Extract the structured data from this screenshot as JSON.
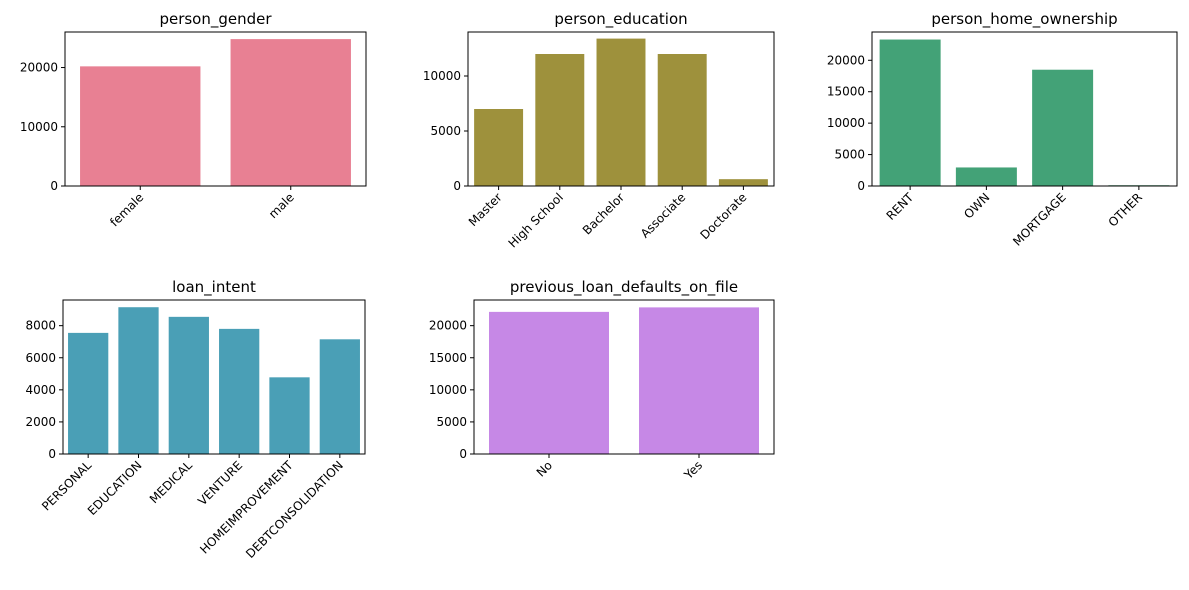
{
  "chart_data": [
    {
      "type": "bar",
      "title": "person_gender",
      "categories": [
        "female",
        "male"
      ],
      "values": [
        20200,
        24800
      ],
      "color": "#e88093",
      "ylim": [
        0,
        26000
      ],
      "yticks": [
        0,
        10000,
        20000
      ],
      "xlabel": "",
      "ylabel": ""
    },
    {
      "type": "bar",
      "title": "person_education",
      "categories": [
        "Master",
        "High School",
        "Bachelor",
        "Associate",
        "Doctorate"
      ],
      "values": [
        7000,
        12000,
        13400,
        12000,
        620
      ],
      "color": "#9e913c",
      "ylim": [
        0,
        14000
      ],
      "yticks": [
        0,
        5000,
        10000
      ],
      "xlabel": "",
      "ylabel": ""
    },
    {
      "type": "bar",
      "title": "person_home_ownership",
      "categories": [
        "RENT",
        "OWN",
        "MORTGAGE",
        "OTHER"
      ],
      "values": [
        23300,
        2950,
        18500,
        120
      ],
      "color": "#43a277",
      "ylim": [
        0,
        24500
      ],
      "yticks": [
        0,
        5000,
        10000,
        15000,
        20000
      ],
      "xlabel": "",
      "ylabel": ""
    },
    {
      "type": "bar",
      "title": "loan_intent",
      "categories": [
        "PERSONAL",
        "EDUCATION",
        "MEDICAL",
        "VENTURE",
        "HOMEIMPROVEMENT",
        "DEBTCONSOLIDATION"
      ],
      "values": [
        7550,
        9150,
        8550,
        7800,
        4780,
        7150
      ],
      "color": "#4a9fb6",
      "ylim": [
        0,
        9600
      ],
      "yticks": [
        0,
        2000,
        4000,
        6000,
        8000
      ],
      "xlabel": "",
      "ylabel": ""
    },
    {
      "type": "bar",
      "title": "previous_loan_defaults_on_file",
      "categories": [
        "No",
        "Yes"
      ],
      "values": [
        22150,
        22850
      ],
      "color": "#c688e6",
      "ylim": [
        0,
        24000
      ],
      "yticks": [
        0,
        5000,
        10000,
        15000,
        20000
      ],
      "xlabel": "",
      "ylabel": ""
    }
  ]
}
